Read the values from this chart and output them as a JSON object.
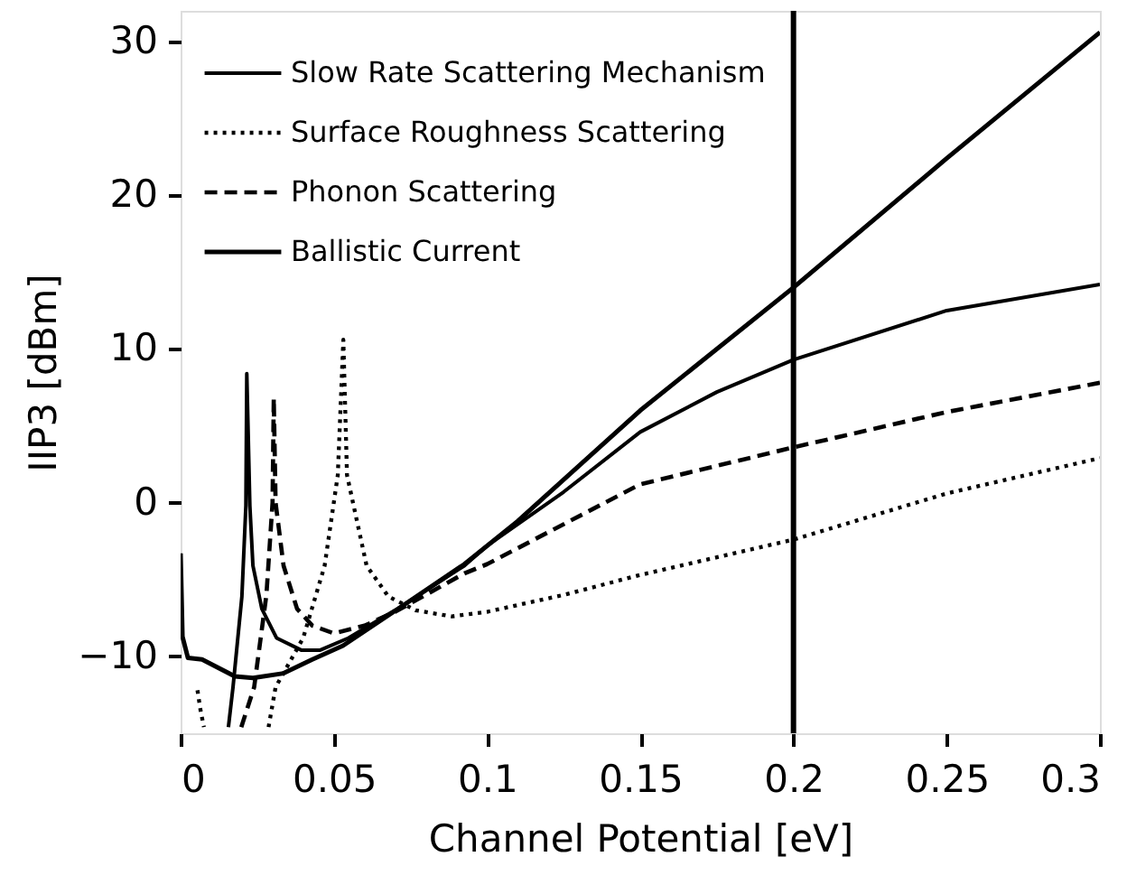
{
  "chart_data": {
    "type": "line",
    "xlabel": "Channel Potential [eV]",
    "ylabel": "IIP3 [dBm]",
    "xlim": [
      0,
      0.3
    ],
    "ylim": [
      -15,
      32
    ],
    "xticks": [
      0,
      0.05,
      0.1,
      0.15,
      0.2,
      0.25,
      0.3
    ],
    "yticks": [
      -10,
      0,
      10,
      20,
      30
    ],
    "grid": false,
    "legend": "top left",
    "marker": "none",
    "ref_lines": [
      {
        "axis": "x",
        "value": 0.2,
        "color": "#000000",
        "line_style": "solid"
      }
    ],
    "series": [
      {
        "name": "Slow Rate Scattering Mechanism",
        "color": "#000000",
        "line_style": "solid",
        "x": [
          0.0156,
          0.0171,
          0.02,
          0.0213,
          0.0216,
          0.0226,
          0.0236,
          0.0265,
          0.0313,
          0.0395,
          0.0454,
          0.0548,
          0.0649,
          0.07,
          0.0926,
          0.1,
          0.125,
          0.15,
          0.175,
          0.2,
          0.25,
          0.3
        ],
        "values": [
          -14.6,
          -12,
          -6.1,
          -0.2,
          8.4,
          -0.2,
          -4.1,
          -6.9,
          -8.8,
          -9.6,
          -9.6,
          -8.8,
          -7.6,
          -7.0,
          -4.1,
          -2.8,
          0.7,
          4.6,
          7.2,
          9.3,
          12.5,
          14.2
        ]
      },
      {
        "name": "Surface Roughness Scattering",
        "color": "#000000",
        "line_style": "dotted",
        "x": [
          0.0055,
          0.0065,
          0.0076,
          null,
          0.0287,
          0.031,
          0.04,
          0.047,
          0.0513,
          0.0531,
          0.0543,
          0.0607,
          0.0678,
          0.0767,
          0.0885,
          0.1,
          0.125,
          0.15,
          0.2,
          0.25,
          0.3
        ],
        "values": [
          -12.2,
          -13.5,
          -14.6,
          null,
          -14.6,
          -12,
          -8.8,
          -4.1,
          1.8,
          10.6,
          1.8,
          -4.1,
          -6.1,
          -7.0,
          -7.4,
          -7.1,
          -6.0,
          -4.7,
          -2.4,
          0.6,
          2.9
        ]
      },
      {
        "name": "Phonon Scattering",
        "color": "#000000",
        "line_style": "dashed",
        "x": [
          0.0198,
          0.024,
          0.028,
          0.03,
          0.0304,
          0.031,
          0.0336,
          0.038,
          0.043,
          0.05,
          0.06,
          0.07,
          0.0926,
          0.1,
          0.15,
          0.2,
          0.25,
          0.3
        ],
        "values": [
          -14.6,
          -12,
          -6,
          0,
          6.8,
          0,
          -4.1,
          -6.9,
          -8.0,
          -8.5,
          -8.0,
          -7.1,
          -4.6,
          -4.0,
          1.2,
          3.6,
          5.9,
          7.8
        ]
      },
      {
        "name": "Ballistic Current",
        "color": "#000000",
        "line_style": "solid",
        "x": [
          0,
          0.0006,
          0.0024,
          0.007,
          0.0177,
          0.0236,
          0.0336,
          0.043,
          0.053,
          0.0725,
          0.0926,
          0.11,
          0.15,
          0.2,
          0.25,
          0.3
        ],
        "values": [
          -3.3,
          -8.7,
          -10.1,
          -10.2,
          -11.3,
          -11.4,
          -11.1,
          -10.2,
          -9.3,
          -6.7,
          -4.0,
          -1.2,
          6.0,
          14.0,
          22.4,
          30.6
        ]
      }
    ]
  }
}
